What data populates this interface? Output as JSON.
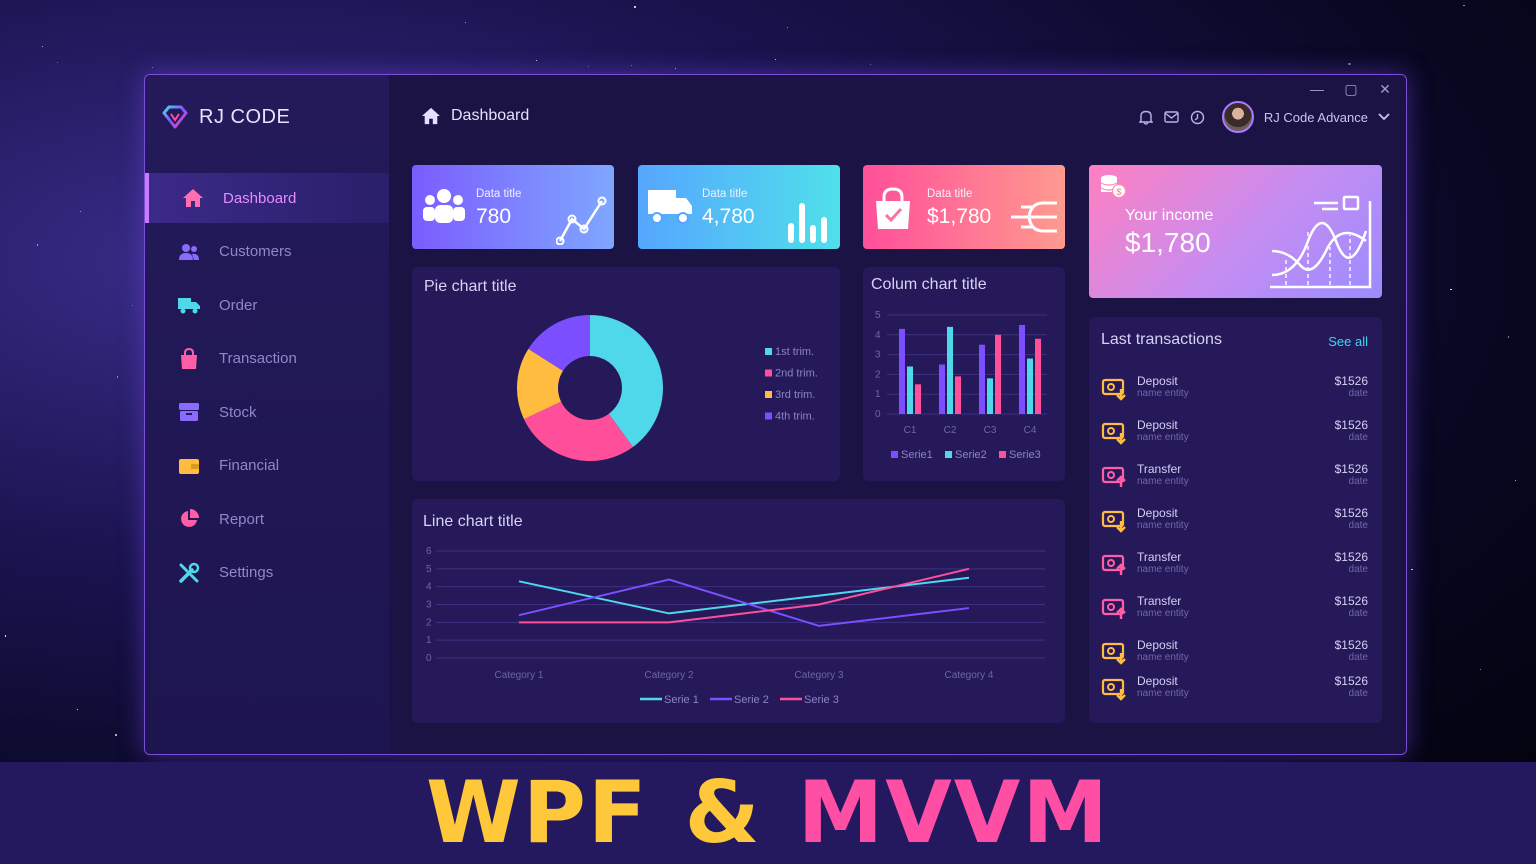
{
  "app": {
    "logo_text": "RJ CODE",
    "window_controls": [
      "—",
      "▢",
      "✕"
    ]
  },
  "sidebar": {
    "items": [
      {
        "label": "Dashboard",
        "icon": "home-icon",
        "active": true
      },
      {
        "label": "Customers",
        "icon": "users-icon"
      },
      {
        "label": "Order",
        "icon": "truck-icon"
      },
      {
        "label": "Transaction",
        "icon": "shopping-bag-icon"
      },
      {
        "label": "Stock",
        "icon": "box-icon"
      },
      {
        "label": "Financial",
        "icon": "wallet-icon"
      },
      {
        "label": "Report",
        "icon": "pie-chart-icon"
      },
      {
        "label": "Settings",
        "icon": "tools-icon"
      }
    ]
  },
  "header": {
    "title": "Dashboard",
    "user_name": "RJ Code Advance"
  },
  "stats": [
    {
      "title": "Data title",
      "value": "780",
      "icon": "users-icon",
      "graph": "trend-line-icon",
      "from": "#7b5cff",
      "to": "#7fa7ff"
    },
    {
      "title": "Data title",
      "value": "4,780",
      "icon": "truck-icon",
      "graph": "bars-icon",
      "from": "#56a6ff",
      "to": "#4fe0ea"
    },
    {
      "title": "Data title",
      "value": "$1,780",
      "icon": "shopping-bag-icon",
      "graph": "flow-icon",
      "from": "#ff4f9a",
      "to": "#ff9a8f"
    }
  ],
  "income": {
    "title": "Your income",
    "value": "$1,780",
    "icon": "coins-icon"
  },
  "pie": {
    "title": "Pie chart title",
    "legend": [
      "1st trim.",
      "2nd trim.",
      "3rd trim.",
      "4th trim."
    ],
    "colors": [
      "#4fd8ea",
      "#ff4f9a",
      "#ffbc3f",
      "#7b4fff"
    ]
  },
  "column": {
    "title": "Colum chart title"
  },
  "line": {
    "title": "Line chart title"
  },
  "chart_data": [
    {
      "type": "pie",
      "title": "Pie chart title",
      "categories": [
        "1st trim.",
        "2nd trim.",
        "3rd trim.",
        "4th trim."
      ],
      "values": [
        40,
        28,
        16,
        16
      ]
    },
    {
      "type": "bar",
      "title": "Colum chart title",
      "categories": [
        "C1",
        "C2",
        "C3",
        "C4"
      ],
      "ylim": [
        0,
        5
      ],
      "yticks": [
        0,
        1,
        2,
        3,
        4,
        5
      ],
      "series": [
        {
          "name": "Serie1",
          "color": "#7b4fff",
          "values": [
            4.3,
            2.5,
            3.5,
            4.5
          ]
        },
        {
          "name": "Serie2",
          "color": "#4fd8ea",
          "values": [
            2.4,
            4.4,
            1.8,
            2.8
          ]
        },
        {
          "name": "Serie3",
          "color": "#ff4f9a",
          "values": [
            1.5,
            1.9,
            4.0,
            3.8
          ]
        }
      ]
    },
    {
      "type": "line",
      "title": "Line chart title",
      "categories": [
        "Category 1",
        "Category 2",
        "Category 3",
        "Category 4"
      ],
      "ylim": [
        0,
        6
      ],
      "yticks": [
        0,
        1,
        2,
        3,
        4,
        5,
        6
      ],
      "series": [
        {
          "name": "Serie 1",
          "color": "#4fd8ea",
          "values": [
            4.3,
            2.5,
            3.5,
            4.5
          ]
        },
        {
          "name": "Serie 2",
          "color": "#7b4fff",
          "values": [
            2.4,
            4.4,
            1.8,
            2.8
          ]
        },
        {
          "name": "Serie 3",
          "color": "#ff4f9a",
          "values": [
            2.0,
            2.0,
            3.0,
            5.0
          ]
        }
      ]
    }
  ],
  "transactions": {
    "title": "Last transactions",
    "see_all": "See all",
    "items": [
      {
        "type": "Deposit",
        "entity": "name entity",
        "amount": "$1526",
        "date": "date",
        "kind": "deposit"
      },
      {
        "type": "Deposit",
        "entity": "name entity",
        "amount": "$1526",
        "date": "date",
        "kind": "deposit"
      },
      {
        "type": "Transfer",
        "entity": "name entity",
        "amount": "$1526",
        "date": "date",
        "kind": "transfer"
      },
      {
        "type": "Deposit",
        "entity": "name entity",
        "amount": "$1526",
        "date": "date",
        "kind": "deposit"
      },
      {
        "type": "Transfer",
        "entity": "name entity",
        "amount": "$1526",
        "date": "date",
        "kind": "transfer"
      },
      {
        "type": "Transfer",
        "entity": "name entity",
        "amount": "$1526",
        "date": "date",
        "kind": "transfer"
      },
      {
        "type": "Deposit",
        "entity": "name entity",
        "amount": "$1526",
        "date": "date",
        "kind": "deposit"
      },
      {
        "type": "Deposit",
        "entity": "name entity",
        "amount": "$1526",
        "date": "date",
        "kind": "deposit"
      }
    ]
  },
  "banner": {
    "part1": "WPF",
    "part2": "&",
    "part3": "MVVM"
  }
}
